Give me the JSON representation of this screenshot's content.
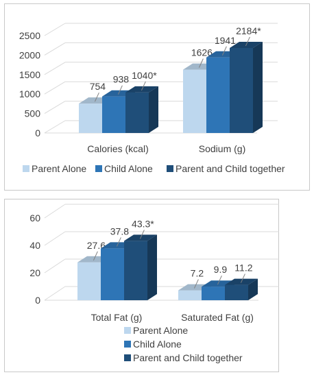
{
  "chart_data": [
    {
      "type": "bar",
      "style": "3d-clustered-column",
      "categories": [
        "Calories (kcal)",
        "Sodium (g)"
      ],
      "series": [
        {
          "name": "Parent Alone",
          "values": [
            754,
            1626
          ],
          "labels": [
            "754",
            "1626"
          ],
          "color": "#bdd7ee"
        },
        {
          "name": "Child Alone",
          "values": [
            938,
            1941
          ],
          "labels": [
            "938",
            "1941"
          ],
          "color": "#2e75b6"
        },
        {
          "name": "Parent and Child together",
          "values": [
            1040,
            2184
          ],
          "labels": [
            "1040*",
            "2184*"
          ],
          "color": "#1f4e79"
        }
      ],
      "yticks": [
        0,
        500,
        1000,
        1500,
        2000,
        2500
      ],
      "ylim": [
        0,
        2500
      ],
      "grid": true,
      "legend_position": "bottom"
    },
    {
      "type": "bar",
      "style": "3d-clustered-column",
      "categories": [
        "Total Fat (g)",
        "Saturated Fat (g)"
      ],
      "series": [
        {
          "name": "Parent Alone",
          "values": [
            27.6,
            7.2
          ],
          "labels": [
            "27.6",
            "7.2"
          ],
          "color": "#bdd7ee"
        },
        {
          "name": "Child Alone",
          "values": [
            37.8,
            9.9
          ],
          "labels": [
            "37.8",
            "9.9"
          ],
          "color": "#2e75b6"
        },
        {
          "name": "Parent and Child together",
          "values": [
            43.3,
            11.2
          ],
          "labels": [
            "43.3*",
            "11.2"
          ],
          "color": "#1f4e79"
        }
      ],
      "yticks": [
        0,
        20,
        40,
        60
      ],
      "ylim": [
        0,
        60
      ],
      "grid": true,
      "legend_position": "bottom"
    }
  ]
}
